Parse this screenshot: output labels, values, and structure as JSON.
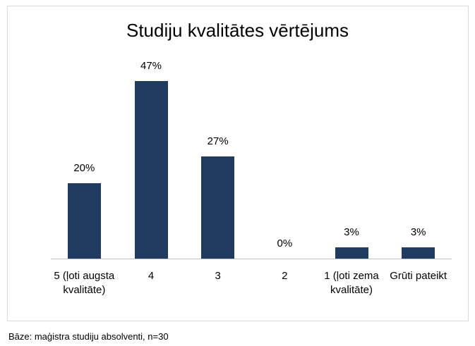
{
  "chart_data": {
    "type": "bar",
    "title": "Studiju kvalitātes vērtējums",
    "categories": [
      "5 (ļoti augsta kvalitāte)",
      "4",
      "3",
      "2",
      "1 (ļoti zema kvalitāte)",
      "Grūti pateikt"
    ],
    "values": [
      20,
      47,
      27,
      0,
      3,
      3
    ],
    "value_labels": [
      "20%",
      "47%",
      "27%",
      "0%",
      "3%",
      "3%"
    ],
    "color": "#1f3b60",
    "note": "Bāze: maģistra studiju absolventi, n=30"
  }
}
